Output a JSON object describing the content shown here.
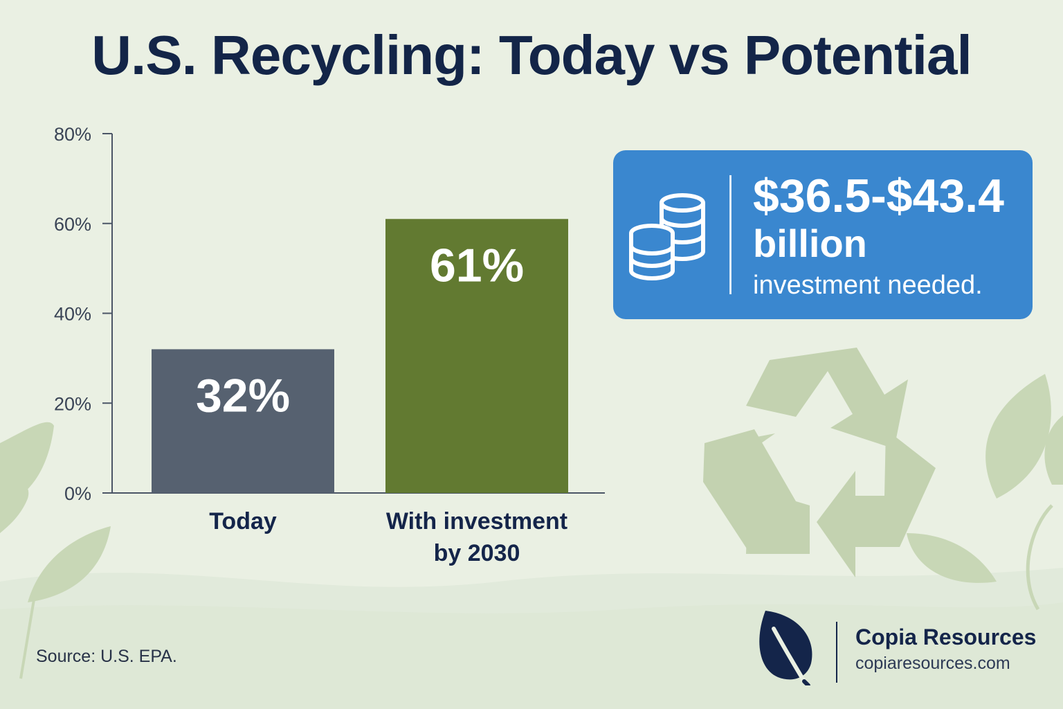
{
  "page": {
    "title": "U.S. Recycling: Today vs Potential"
  },
  "chart_data": {
    "type": "bar",
    "categories": [
      "Today",
      "With investment by 2030"
    ],
    "category_lines": [
      [
        "Today"
      ],
      [
        "With investment",
        "by 2030"
      ]
    ],
    "values": [
      32,
      61
    ],
    "value_labels": [
      "32%",
      "61%"
    ],
    "colors": [
      "#566170",
      "#627a31"
    ],
    "ylim": [
      0,
      80
    ],
    "yticks": [
      0,
      20,
      40,
      60,
      80
    ],
    "ytick_labels": [
      "0%",
      "20%",
      "40%",
      "60%",
      "80%"
    ],
    "xlabel": "",
    "ylabel": "",
    "grid": false,
    "legend": "none"
  },
  "callout": {
    "icon": "coins-icon",
    "amount": "$36.5-$43.4",
    "unit": "billion",
    "description": "investment needed."
  },
  "footer": {
    "source": "Source: U.S. EPA.",
    "brand_name": "Copia Resources",
    "brand_url": "copiaresources.com",
    "brand_icon": "leaf-icon"
  },
  "colors": {
    "background": "#eaf0e3",
    "title": "#132548",
    "callout": "#3a87cf",
    "decoration": "#c3d2b0"
  }
}
